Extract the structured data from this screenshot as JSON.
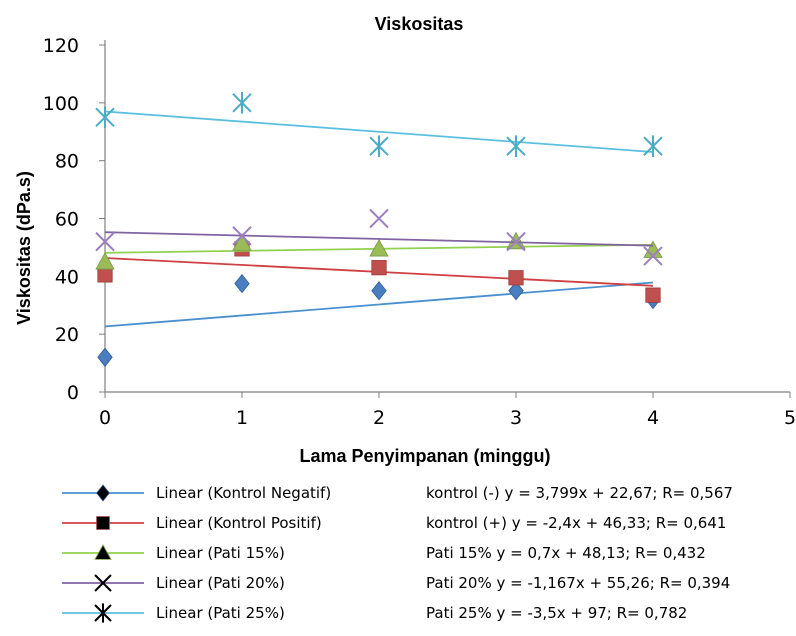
{
  "chart_data": {
    "type": "scatter",
    "title": "Viskositas",
    "xlabel": "Lama Penyimpanan  (minggu)",
    "ylabel": "Viskositas (dPa.s)",
    "xlim": [
      0,
      5
    ],
    "ylim": [
      0,
      120
    ],
    "xticks": [
      "0",
      "1",
      "2",
      "3",
      "4",
      "5"
    ],
    "yticks": [
      "0",
      "20",
      "40",
      "60",
      "80",
      "100",
      "120"
    ],
    "grid": false,
    "legend_position": "bottom",
    "series": [
      {
        "name": "Linear (Kontrol Negatif)",
        "marker": "diamond",
        "marker_color": "#4A7EC1",
        "line_color": "#4A90D0",
        "x": [
          0,
          1,
          2,
          3,
          4
        ],
        "y": [
          12,
          37.5,
          35,
          35,
          32
        ],
        "trend": {
          "slope": 3.799,
          "intercept": 22.67
        },
        "equation_text": "kontrol (-)   y = 3,799x + 22,67;  R= 0,567"
      },
      {
        "name": "Linear (Kontrol Positif)",
        "marker": "square",
        "marker_color": "#C0504D",
        "line_color": "#D04040",
        "x": [
          0,
          1,
          2,
          3,
          4
        ],
        "y": [
          40.5,
          49.5,
          43,
          39.5,
          33.5
        ],
        "trend": {
          "slope": -2.4,
          "intercept": 46.33
        },
        "equation_text": "kontrol (+)   y = -2,4x + 46,33;  R= 0,641"
      },
      {
        "name": "Linear (Pati 15%)",
        "marker": "triangle",
        "marker_color": "#9BBB59",
        "line_color": "#92D050",
        "x": [
          0,
          1,
          2,
          3,
          4
        ],
        "y": [
          45,
          51.5,
          49.5,
          52,
          49
        ],
        "trend": {
          "slope": 0.7,
          "intercept": 48.13
        },
        "equation_text": "Pati 15%   y = 0,7x + 48,13;   R= 0,432"
      },
      {
        "name": "Linear (Pati 20%)",
        "marker": "x",
        "marker_color": "#9C7FC0",
        "line_color": "#8064A2",
        "x": [
          0,
          1,
          2,
          3,
          4
        ],
        "y": [
          52,
          54,
          60,
          52,
          47
        ],
        "trend": {
          "slope": -1.167,
          "intercept": 55.26
        },
        "equation_text": "Pati 20%   y = -1,167x + 55,26;  R= 0,394"
      },
      {
        "name": "Linear (Pati 25%)",
        "marker": "star",
        "marker_color": "#4BACC6",
        "line_color": "#5BC0E0",
        "x": [
          0,
          1,
          2,
          3,
          4
        ],
        "y": [
          95,
          100,
          85,
          85,
          85
        ],
        "trend": {
          "slope": -3.5,
          "intercept": 97
        },
        "equation_text": "Pati 25%   y = -3,5x + 97;   R= 0,782"
      }
    ]
  }
}
